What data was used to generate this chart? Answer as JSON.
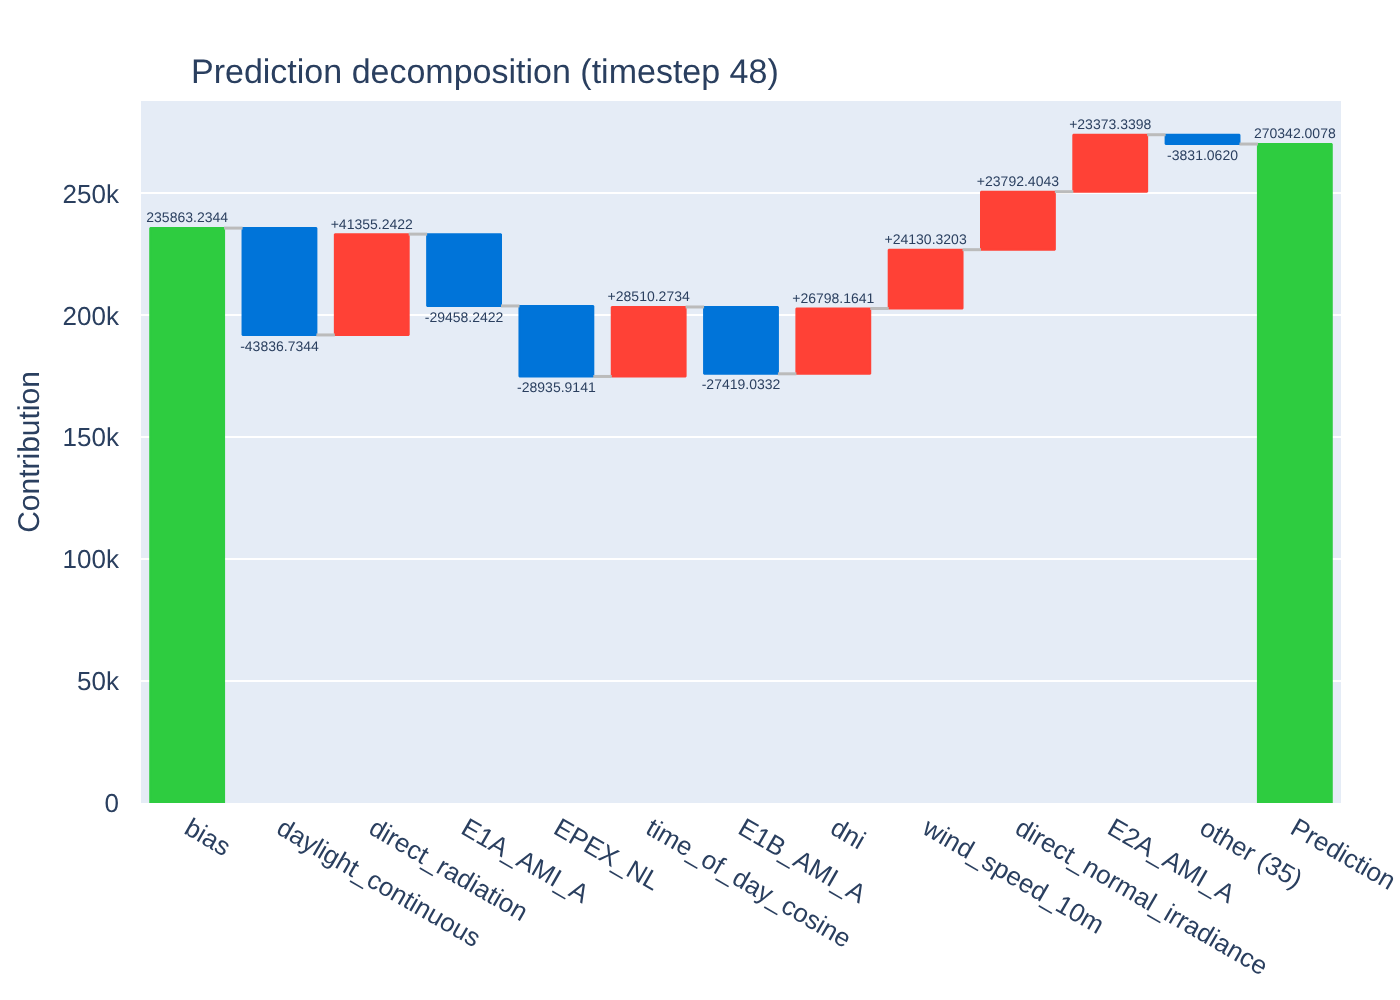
{
  "chart_data": {
    "type": "bar",
    "title": "Prediction decomposition (timestep 48)",
    "ylabel": "Contribution",
    "categories": [
      "bias",
      "daylight_continuous",
      "direct_radiation",
      "E1A_AMI_A",
      "EPEX_NL",
      "time_of_day_cosine",
      "E1B_AMI_A",
      "dni",
      "wind_speed_10m",
      "direct_normal_irradiance",
      "E2A_AMI_A",
      "other (35)",
      "Prediction"
    ],
    "values": [
      235863.2344,
      -43836.7344,
      41355.2422,
      -29458.2422,
      -28935.9141,
      28510.2734,
      -27419.0332,
      26798.1641,
      24130.3203,
      23792.4043,
      23373.3398,
      -3831.062,
      270342.0078
    ],
    "base": [
      0,
      235863.2344,
      192026.5,
      233381.7422,
      203923.5,
      174987.5859,
      203497.8593,
      176078.8261,
      202876.9902,
      227007.3105,
      250799.7148,
      274173.0546,
      0
    ],
    "colors": [
      "#2ecc40",
      "#0074d9",
      "#ff4136",
      "#0074d9",
      "#0074d9",
      "#ff4136",
      "#0074d9",
      "#ff4136",
      "#ff4136",
      "#ff4136",
      "#ff4136",
      "#0074d9",
      "#2ecc40"
    ],
    "value_labels": [
      "235863.2344",
      "-43836.7344",
      "+41355.2422",
      "-29458.2422",
      "-28935.9141",
      "+28510.2734",
      "-27419.0332",
      "+26798.1641",
      "+24130.3203",
      "+23792.4043",
      "+23373.3398",
      "-3831.0620",
      "270342.0078"
    ],
    "ylim": [
      0,
      288000
    ],
    "yticks": [
      0,
      {
        "value": 50000,
        "label": "50k"
      },
      {
        "value": 100000,
        "label": "100k"
      },
      {
        "value": 150000,
        "label": "150k"
      },
      {
        "value": 200000,
        "label": "200k"
      },
      {
        "value": 250000,
        "label": "250k"
      }
    ],
    "grid": "y"
  }
}
